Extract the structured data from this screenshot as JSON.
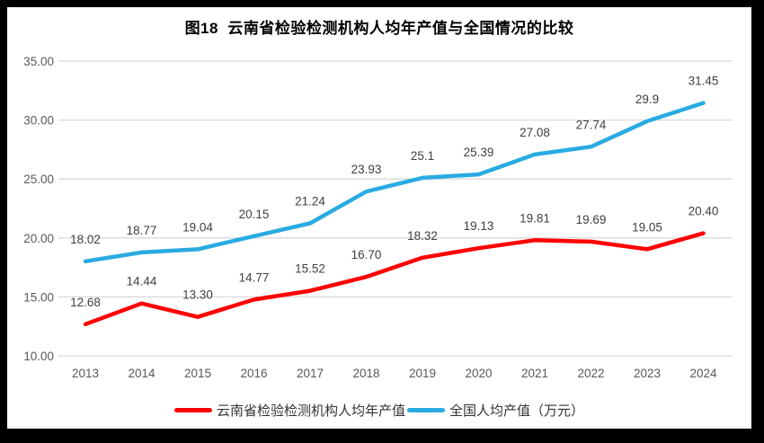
{
  "title": "图18  云南省检验检测机构人均年产值与全国情况的比较",
  "chart_data": {
    "type": "line",
    "title": "图18  云南省检验检测机构人均年产值与全国情况的比较",
    "categories": [
      "2013",
      "2014",
      "2015",
      "2016",
      "2017",
      "2018",
      "2019",
      "2020",
      "2021",
      "2022",
      "2023",
      "2024"
    ],
    "series": [
      {
        "name": "云南省检验检测机构人均年产值",
        "color": "#fe0000",
        "values": [
          12.68,
          14.44,
          13.3,
          14.77,
          15.52,
          16.7,
          18.32,
          19.13,
          19.81,
          19.69,
          19.05,
          20.4
        ],
        "labels": [
          "12.68",
          "14.44",
          "13.30",
          "14.77",
          "15.52",
          "16.70",
          "18.32",
          "19.13",
          "19.81",
          "19.69",
          "19.05",
          "20.40"
        ]
      },
      {
        "name": "全国人均产值（万元）",
        "color": "#29abe2",
        "values": [
          18.02,
          18.77,
          19.04,
          20.15,
          21.24,
          23.93,
          25.1,
          25.39,
          27.08,
          27.74,
          29.9,
          31.45
        ],
        "labels": [
          "18.02",
          "18.77",
          "19.04",
          "20.15",
          "21.24",
          "23.93",
          "25.1",
          "25.39",
          "27.08",
          "27.74",
          "29.9",
          "31.45"
        ]
      }
    ],
    "xlabel": "",
    "ylabel": "",
    "ylim": [
      10,
      35
    ],
    "yticks": [
      {
        "value": 35,
        "label": "35.00"
      },
      {
        "value": 30,
        "label": "30.00"
      },
      {
        "value": 25,
        "label": "25.00"
      },
      {
        "value": 20,
        "label": "20.00"
      },
      {
        "value": 15,
        "label": "15.00"
      },
      {
        "value": 10,
        "label": "10.00"
      }
    ],
    "grid": "horizontal-only",
    "legend_position": "bottom"
  },
  "colors": {
    "frame_background": "#000000",
    "content_background": "#ffffff",
    "gridline": "#d9d9d9",
    "axis_text": "#595959",
    "data_label": "#404040",
    "title_text": "#000000",
    "legend_text": "#333333",
    "series_red": "#fe0000",
    "series_blue": "#29abe2"
  }
}
